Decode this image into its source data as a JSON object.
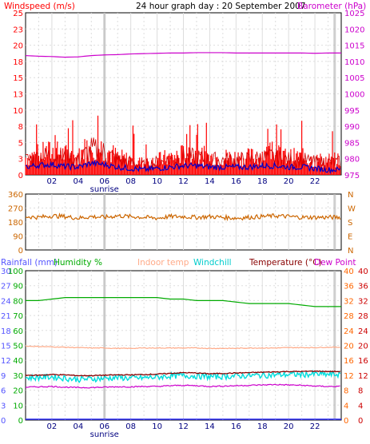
{
  "title": "24 hour graph day : 20 September 2007",
  "colors": {
    "wind": "#ff0000",
    "gust": "#cc0000",
    "avgwind": "#0000cc",
    "baro": "#cc00cc",
    "dir": "#cc6600",
    "rain": "#3333ff",
    "hum": "#00aa00",
    "indoor": "#ffaa88",
    "chill": "#00dddd",
    "temp": "#880000",
    "dew": "#cc00cc",
    "grid": "#dddddd",
    "axis_left": "#5555ff",
    "axis_right": "#ff6600"
  },
  "x_ticks": [
    "02",
    "04",
    "06",
    "08",
    "10",
    "12",
    "14",
    "16",
    "18",
    "20",
    "22"
  ],
  "sunrise_label": "sunrise",
  "sunrise_hour": 6.0,
  "sunset_hour": 23.5,
  "chart_data": [
    {
      "type": "line",
      "id": "wind",
      "title": "",
      "left_label": "Windspeed (m/s)",
      "right_label": "Barometer (hPa)",
      "ylim": [
        0,
        25
      ],
      "y2lim": [
        975,
        1025
      ],
      "y_ticks": [
        "0",
        "3",
        "5",
        "8",
        "10",
        "13",
        "15",
        "18",
        "20",
        "23",
        "25"
      ],
      "y2_ticks": [
        "975",
        "980",
        "985",
        "990",
        "995",
        "1000",
        "1005",
        "1010",
        "1015",
        "1020",
        "1025"
      ],
      "series": [
        {
          "key": "gust",
          "values_hourly": [
            3.0,
            3.5,
            4.0,
            3.5,
            3.0,
            5.0,
            4.5,
            3.0,
            2.5,
            2.0,
            2.5,
            3.0,
            3.5,
            3.5,
            3.0,
            3.0,
            3.0,
            3.0,
            3.5,
            3.5,
            3.0,
            3.0,
            2.5,
            2.5
          ]
        },
        {
          "key": "avg",
          "values_hourly": [
            1.2,
            1.5,
            1.6,
            1.3,
            1.2,
            1.8,
            1.6,
            1.2,
            1.0,
            0.8,
            1.0,
            1.2,
            1.4,
            1.4,
            1.2,
            1.2,
            1.2,
            1.2,
            1.4,
            1.4,
            1.2,
            1.2,
            1.0,
            0.8
          ]
        },
        {
          "key": "barometer",
          "values_hourly": [
            1011.8,
            1011.6,
            1011.5,
            1011.3,
            1011.4,
            1011.8,
            1012.0,
            1012.1,
            1012.3,
            1012.4,
            1012.5,
            1012.6,
            1012.6,
            1012.7,
            1012.7,
            1012.7,
            1012.6,
            1012.6,
            1012.6,
            1012.6,
            1012.6,
            1012.6,
            1012.5,
            1012.6
          ]
        }
      ]
    },
    {
      "type": "line",
      "id": "direction",
      "ylim": [
        0,
        360
      ],
      "y_ticks": [
        "0",
        "90",
        "180",
        "270",
        "360"
      ],
      "y2_ticks": [
        "N",
        "E",
        "S",
        "W",
        "N"
      ],
      "series": [
        {
          "key": "direction",
          "values_hourly": [
            215,
            210,
            220,
            215,
            205,
            215,
            210,
            220,
            215,
            210,
            205,
            215,
            215,
            210,
            215,
            210,
            205,
            210,
            215,
            220,
            215,
            210,
            210,
            210
          ]
        }
      ]
    },
    {
      "type": "line",
      "id": "temps",
      "labels": {
        "rain": "Rainfall (mm)",
        "hum": "Humidity %",
        "indoor": "Indoor temp",
        "chill": "Windchill",
        "temp": "Temperature (°C)",
        "dew": "Dew Point"
      },
      "rain_ticks": [
        "0",
        "3",
        "6",
        "9",
        "12",
        "15",
        "18",
        "21",
        "24",
        "27",
        "30"
      ],
      "hum_ticks": [
        "0",
        "10",
        "20",
        "30",
        "40",
        "50",
        "60",
        "70",
        "80",
        "90",
        "100"
      ],
      "temp_ticks": [
        "0",
        "4",
        "8",
        "12",
        "16",
        "20",
        "24",
        "28",
        "32",
        "36",
        "40"
      ],
      "ylim_temp": [
        0,
        40
      ],
      "ylim_hum": [
        0,
        100
      ],
      "series": [
        {
          "key": "rain",
          "values_hourly": [
            0,
            0,
            0,
            0,
            0,
            0,
            0,
            0,
            0,
            0,
            0,
            0,
            0,
            0,
            0,
            0,
            0,
            0,
            0,
            0,
            0,
            0,
            0,
            0
          ]
        },
        {
          "key": "humidity",
          "values_hourly": [
            80,
            80,
            81,
            82,
            82,
            82,
            82,
            82,
            82,
            82,
            82,
            81,
            81,
            80,
            80,
            80,
            79,
            78,
            78,
            78,
            78,
            77,
            76,
            76
          ]
        },
        {
          "key": "indoor",
          "values_hourly": [
            19.8,
            19.7,
            19.6,
            19.5,
            19.4,
            19.3,
            19.3,
            19.2,
            19.2,
            19.3,
            19.3,
            19.3,
            19.3,
            19.3,
            19.2,
            19.2,
            19.2,
            19.3,
            19.3,
            19.3,
            19.4,
            19.4,
            19.4,
            19.5
          ]
        },
        {
          "key": "windchill",
          "values_hourly": [
            11.3,
            11.4,
            11.6,
            11.2,
            10.9,
            11.0,
            11.2,
            11.4,
            11.2,
            11.3,
            11.5,
            11.8,
            11.9,
            11.8,
            11.6,
            11.7,
            11.8,
            11.9,
            12.0,
            12.1,
            12.2,
            12.2,
            12.3,
            12.2
          ]
        },
        {
          "key": "temperature",
          "values_hourly": [
            12.0,
            12.0,
            12.2,
            12.1,
            11.9,
            11.9,
            12.0,
            12.1,
            12.1,
            12.2,
            12.3,
            12.5,
            12.7,
            12.6,
            12.4,
            12.5,
            12.6,
            12.7,
            12.8,
            12.9,
            13.0,
            13.0,
            13.1,
            13.0
          ]
        },
        {
          "key": "dewpoint",
          "values_hourly": [
            8.8,
            8.9,
            9.0,
            8.8,
            8.7,
            8.7,
            8.8,
            8.9,
            8.9,
            9.0,
            9.0,
            9.2,
            9.3,
            9.2,
            9.0,
            9.1,
            9.2,
            9.3,
            9.4,
            9.5,
            9.4,
            9.3,
            9.1,
            9.0
          ]
        }
      ]
    }
  ]
}
